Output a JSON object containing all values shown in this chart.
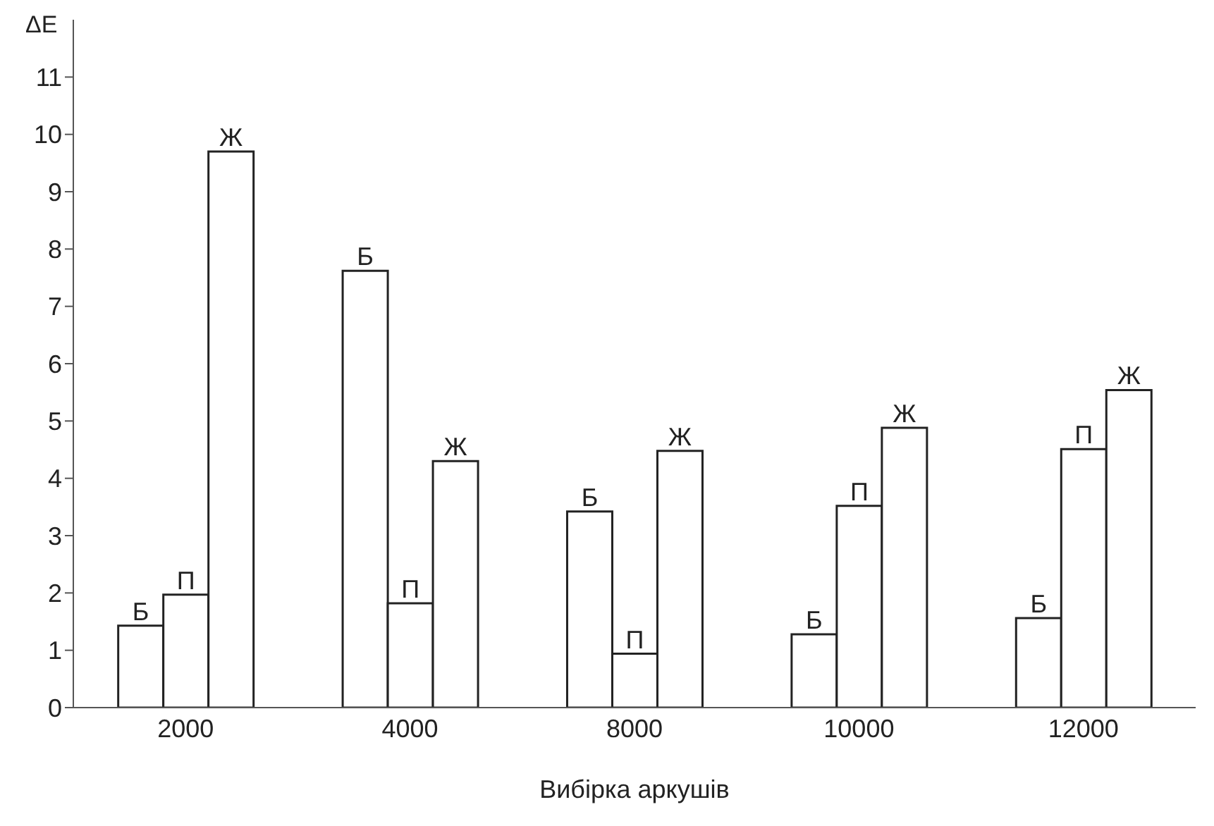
{
  "chart_data": {
    "type": "bar",
    "xlabel": "Вибірка аркушів",
    "ylabel": "ΔE",
    "categories": [
      "2000",
      "4000",
      "8000",
      "10000",
      "12000"
    ],
    "series": [
      {
        "name": "Б",
        "color": "#ffffff",
        "values": [
          1.43,
          7.62,
          3.42,
          1.28,
          1.56
        ]
      },
      {
        "name": "П",
        "color": "#ffffff",
        "values": [
          1.97,
          1.82,
          0.94,
          3.52,
          4.51
        ]
      },
      {
        "name": "Ж",
        "color": "#ffffff",
        "values": [
          9.7,
          4.3,
          4.48,
          4.88,
          5.54
        ]
      }
    ],
    "ylim": [
      0,
      12
    ],
    "yticks": [
      0,
      1,
      2,
      3,
      4,
      5,
      6,
      7,
      8,
      9,
      10,
      11
    ],
    "grid": false,
    "legend": false
  }
}
